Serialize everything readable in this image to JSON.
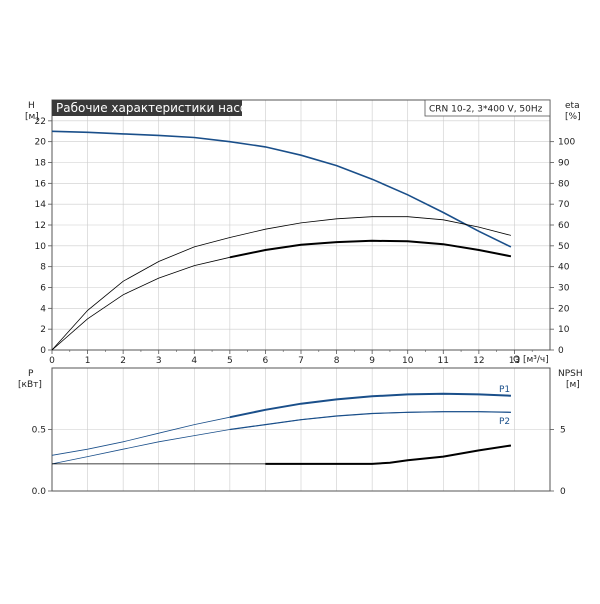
{
  "chart_data": [
    {
      "type": "line",
      "title": "Рабочие характеристики насоса",
      "subtitle": "CRN 10-2, 3*400 V, 50Hz",
      "xlabel": "Q [м³/ч]",
      "ylabel_left": "H",
      "ylabel_left_unit": "[м]",
      "ylabel_right": "eta",
      "ylabel_right_unit": "[%]",
      "xlim": [
        0,
        14
      ],
      "ylim_left": [
        0,
        24
      ],
      "ylim_right": [
        0,
        120
      ],
      "x_ticks": [
        "0",
        "1",
        "2",
        "3",
        "4",
        "5",
        "6",
        "7",
        "8",
        "9",
        "10",
        "11",
        "12",
        "13"
      ],
      "y_ticks_left": [
        "0",
        "2",
        "4",
        "6",
        "8",
        "10",
        "12",
        "14",
        "16",
        "18",
        "20",
        "22"
      ],
      "y_ticks_right": [
        "0",
        "10",
        "20",
        "30",
        "40",
        "50",
        "60",
        "70",
        "80",
        "90",
        "100"
      ],
      "grid": true,
      "series": [
        {
          "axis": "left",
          "color": "#1a4f8a",
          "x": [
            0,
            1,
            2,
            3,
            4,
            5,
            6,
            7,
            8,
            9,
            10,
            11,
            12,
            12.9
          ],
          "y": [
            21.0,
            20.9,
            20.75,
            20.6,
            20.4,
            20.0,
            19.5,
            18.7,
            17.7,
            16.4,
            14.9,
            13.2,
            11.4,
            9.9
          ]
        },
        {
          "axis": "right",
          "color": "#000000",
          "x": [
            0,
            1,
            2,
            3,
            4,
            5,
            6,
            7,
            8,
            9,
            10,
            11,
            12,
            12.9
          ],
          "y": [
            0,
            19,
            33,
            42.5,
            49.5,
            54,
            58,
            61,
            63,
            64,
            64,
            62.5,
            59,
            55
          ]
        },
        {
          "axis": "right",
          "color": "#000000",
          "x": [
            0,
            1,
            2,
            3,
            4,
            5,
            6,
            7,
            8,
            9,
            10,
            11,
            12,
            12.9
          ],
          "y": [
            0,
            15,
            26.5,
            34.5,
            40.5,
            44.5,
            48,
            50.5,
            51.8,
            52.4,
            52.2,
            50.8,
            48,
            45
          ]
        }
      ]
    },
    {
      "type": "line",
      "ylabel_left": "P",
      "ylabel_left_unit": "[кВт]",
      "ylabel_right": "NPSH",
      "ylabel_right_unit": "[м]",
      "xlim": [
        0,
        14
      ],
      "ylim_left": [
        0,
        1.0
      ],
      "ylim_right": [
        0,
        10
      ],
      "y_ticks_left": [
        "0.0",
        "0.5"
      ],
      "y_ticks_right": [
        "0",
        "5"
      ],
      "grid": true,
      "series": [
        {
          "name": "P1",
          "axis": "left",
          "color": "#1a4f8a",
          "x": [
            0,
            1,
            2,
            3,
            4,
            5,
            6,
            7,
            8,
            9,
            10,
            11,
            12,
            12.9
          ],
          "y": [
            0.29,
            0.34,
            0.4,
            0.47,
            0.54,
            0.6,
            0.66,
            0.71,
            0.745,
            0.77,
            0.785,
            0.79,
            0.785,
            0.775
          ]
        },
        {
          "name": "P2",
          "axis": "left",
          "color": "#1a4f8a",
          "x": [
            0,
            1,
            2,
            3,
            4,
            5,
            6,
            7,
            8,
            9,
            10,
            11,
            12,
            12.9
          ],
          "y": [
            0.22,
            0.28,
            0.34,
            0.4,
            0.45,
            0.5,
            0.54,
            0.58,
            0.61,
            0.63,
            0.64,
            0.645,
            0.645,
            0.64
          ]
        },
        {
          "axis": "right",
          "color": "#000000",
          "x": [
            0,
            2,
            4,
            6,
            8,
            9,
            9.5,
            10,
            11,
            12,
            12.9
          ],
          "y": [
            2.2,
            2.2,
            2.2,
            2.2,
            2.2,
            2.2,
            2.3,
            2.5,
            2.8,
            3.3,
            3.7
          ]
        }
      ]
    }
  ]
}
